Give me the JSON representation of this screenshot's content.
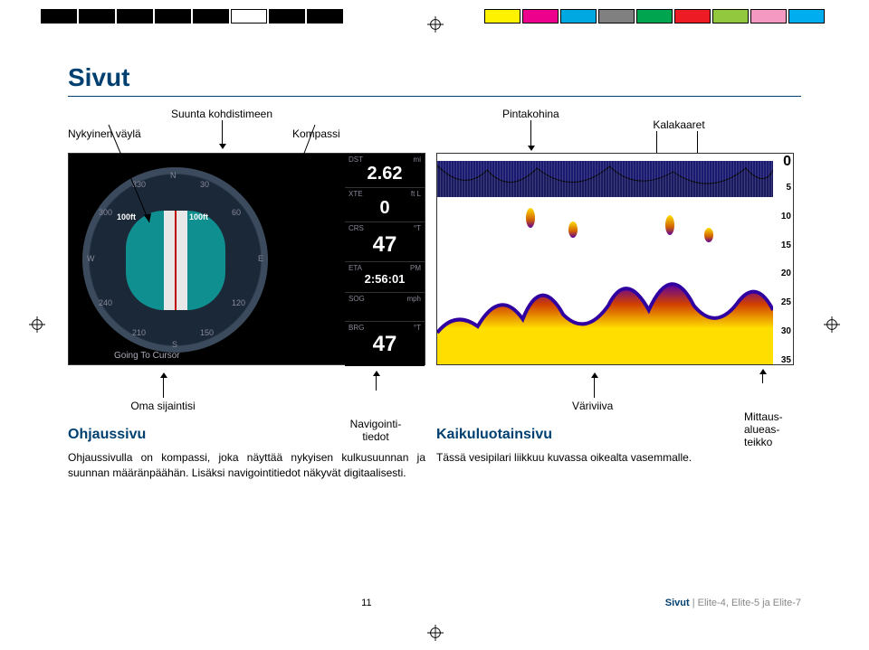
{
  "colorbar": {
    "left": [
      "#000000",
      "#000000",
      "#000000",
      "#000000",
      "#000000",
      "#ffffff",
      "#000000",
      "#000000"
    ],
    "right": [
      "#fff200",
      "#ec008c",
      "#00a8e1",
      "#808080",
      "#00a54f",
      "#ed1c24",
      "#92c83e",
      "#f499c1",
      "#00aeef"
    ]
  },
  "page": {
    "title": "Sivut",
    "labels": {
      "nykyinen_vayla": "Nykyinen väylä",
      "suunta": "Suunta kohdistimeen",
      "kompassi": "Kompassi",
      "pintakohina": "Pintakohina",
      "kalakaaret": "Kalakaaret",
      "oma_sijaintisi": "Oma sijaintisi",
      "navigointitiedot": "Navigointi-\ntiedot",
      "variviiva": "Väriviiva",
      "mittausalueasteikko": "Mittaus-\nalueas-\nteikko"
    },
    "steer": {
      "header": "Ohjaussivu",
      "body": "Ohjaussivulla on kompassi, joka näyttää nykyisen kulkusuunnan ja suunnan määränpäähän. Lisäksi navigointitiedot näkyvät digitaalisesti.",
      "going": "Going To Cursor",
      "ft": "100ft",
      "ticks": {
        "N": "N",
        "E": "E",
        "S": "S",
        "W": "W",
        "30": "30",
        "60": "60",
        "120": "120",
        "150": "150",
        "210": "210",
        "240": "240",
        "300": "300",
        "330": "330"
      }
    },
    "navdata": {
      "DST": {
        "label": "DST",
        "unit": "mi",
        "value": "2.62"
      },
      "XTE": {
        "label": "XTE",
        "unit": "ft L",
        "value": "0"
      },
      "CRS": {
        "label": "CRS",
        "unit": "°T",
        "value": "47"
      },
      "ETA": {
        "label": "ETA",
        "unit": "PM",
        "value": "2:56:01"
      },
      "SOG": {
        "label": "SOG",
        "unit": "mph",
        "value": ""
      },
      "BRG": {
        "label": "BRG",
        "unit": "°T",
        "value": "47"
      }
    },
    "sonar": {
      "header": "Kaikuluotainsivu",
      "body": "Tässä vesipilari liikkuu kuvassa oikealta vasemmalle.",
      "scale": [
        "0",
        "5",
        "10",
        "15",
        "20",
        "25",
        "30",
        "35"
      ],
      "scale_max": 35,
      "colors": {
        "water_bg": "#ffffff",
        "surface": "#1a1a70",
        "bottom_outer": "#ffde00",
        "bottom_mid": "#e06000",
        "bottom_inner": "#6000b0"
      }
    }
  },
  "footer": {
    "page_number": "11",
    "section": "Sivut",
    "models": "Elite-4, Elite-5 ja Elite-7"
  }
}
